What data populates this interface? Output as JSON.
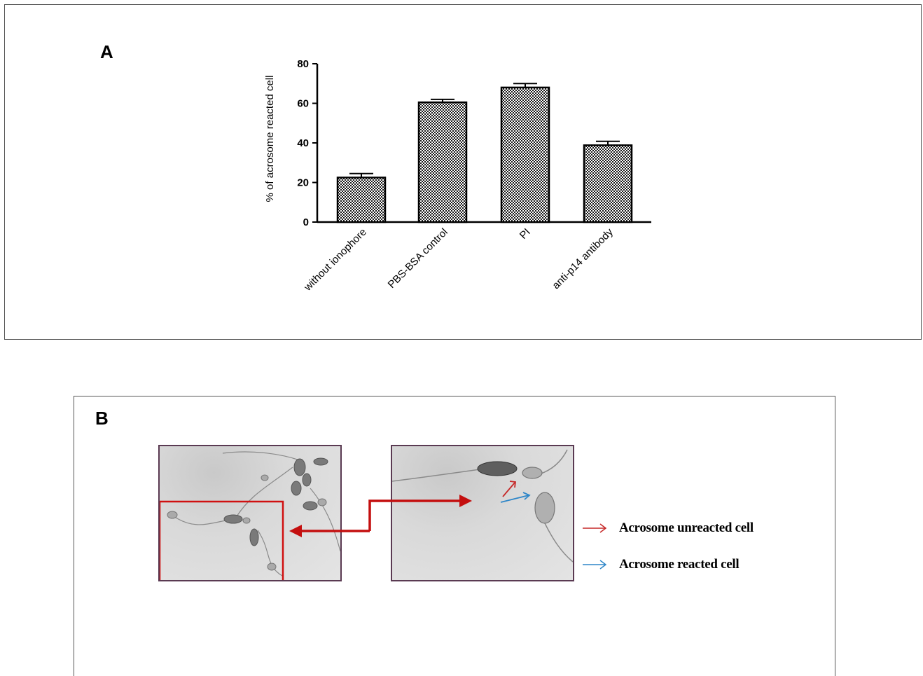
{
  "panel_a": {
    "letter": "A"
  },
  "panel_b": {
    "letter": "B",
    "legend": [
      {
        "label": "Acrosome unreacted cell",
        "color": "#c62828"
      },
      {
        "label": "Acrosome reacted cell",
        "color": "#2e86c8"
      }
    ]
  },
  "chart_data": {
    "type": "bar",
    "categories": [
      "without ionophore",
      "PBS-BSA control",
      "PI",
      "anti-p14 antibody"
    ],
    "values": [
      22.5,
      60.5,
      68,
      38.8
    ],
    "error": [
      2,
      1.5,
      2,
      2
    ],
    "ylabel": "% of acrosome reacted cell",
    "xlabel": "",
    "ylim": [
      0,
      80
    ],
    "yticks": [
      0,
      20,
      40,
      60,
      80
    ],
    "bar_fill": "checkered",
    "grid": false
  }
}
